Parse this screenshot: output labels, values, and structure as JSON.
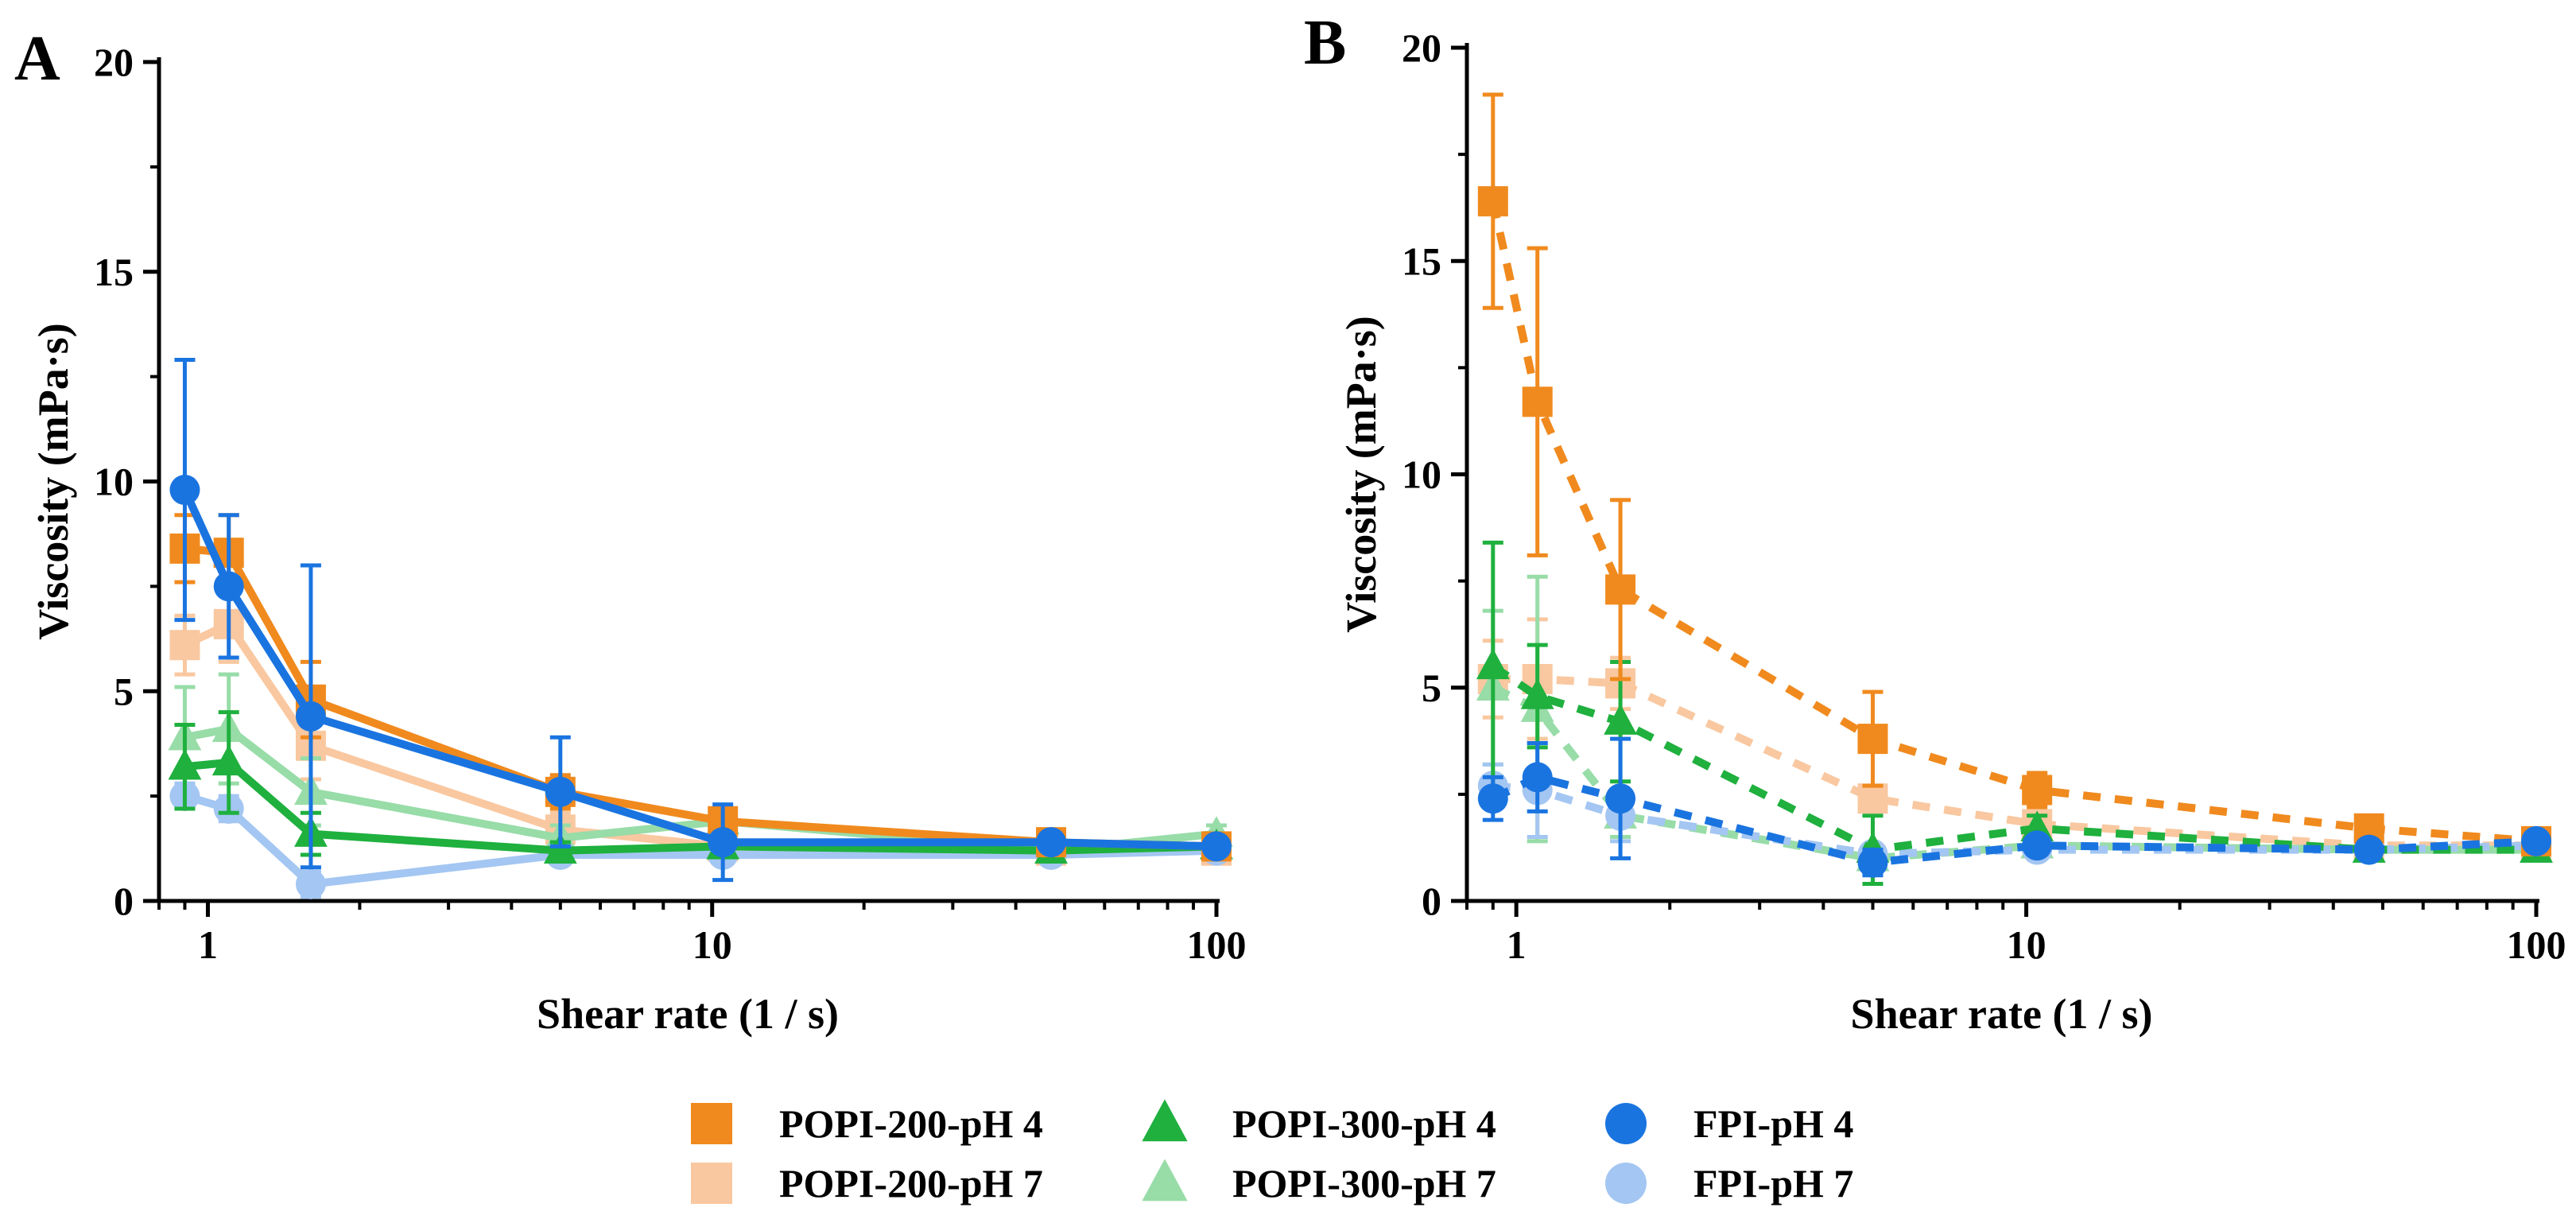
{
  "legend": {
    "items": [
      {
        "label": "POPI-200-pH 4",
        "color": "#F08A1E",
        "marker": "square"
      },
      {
        "label": "POPI-200-pH 7",
        "color": "#F9C8A0",
        "marker": "square"
      },
      {
        "label": "POPI-300-pH 4",
        "color": "#1FB03E",
        "marker": "triangle"
      },
      {
        "label": "POPI-300-pH 7",
        "color": "#98DCA8",
        "marker": "triangle"
      },
      {
        "label": "FPI-pH 4",
        "color": "#1A74E0",
        "marker": "circle"
      },
      {
        "label": "FPI-pH 7",
        "color": "#A4C6F2",
        "marker": "circle"
      }
    ]
  },
  "chart_data": [
    {
      "panel": "A",
      "type": "line",
      "line_style": "solid",
      "xlabel": "Shear rate (1 / s)",
      "ylabel": "Viscosity (mPa·s)",
      "xscale": "log",
      "xlim": [
        0.8,
        100
      ],
      "ylim": [
        0,
        20
      ],
      "xticks": [
        1,
        10,
        100
      ],
      "xtick_labels": [
        "1",
        "10",
        "100"
      ],
      "yticks": [
        0,
        5,
        10,
        15,
        20
      ],
      "ytick_labels": [
        "0",
        "5",
        "10",
        "15",
        "20"
      ],
      "x": [
        0.9,
        1.1,
        1.6,
        5,
        10.5,
        47,
        100
      ],
      "series": [
        {
          "name": "POPI-200-pH 7",
          "values": [
            6.1,
            6.6,
            3.7,
            1.7,
            1.3,
            1.2,
            1.2
          ],
          "errors": [
            0.7,
            0.9,
            0.8,
            0.4,
            0.3,
            0.15,
            0.12
          ]
        },
        {
          "name": "POPI-300-pH 7",
          "values": [
            3.9,
            4.1,
            2.6,
            1.5,
            1.9,
            1.2,
            1.6
          ],
          "errors": [
            1.2,
            1.3,
            0.8,
            0.3,
            0.3,
            0.2,
            0.2
          ]
        },
        {
          "name": "FPI-pH 7",
          "values": [
            2.5,
            2.2,
            0.4,
            1.1,
            1.1,
            1.1,
            1.2
          ],
          "errors": [
            0.3,
            0.3,
            0.3,
            0.2,
            0.1,
            0.1,
            0.1
          ]
        },
        {
          "name": "POPI-300-pH 4",
          "values": [
            3.2,
            3.3,
            1.6,
            1.2,
            1.3,
            1.2,
            1.3
          ],
          "errors": [
            1.0,
            1.2,
            0.5,
            0.2,
            0.2,
            0.2,
            0.2
          ]
        },
        {
          "name": "POPI-200-pH 4",
          "values": [
            8.4,
            8.3,
            4.8,
            2.6,
            1.9,
            1.4,
            1.3
          ],
          "errors": [
            0.8,
            0.9,
            0.9,
            0.4,
            0.3,
            0.15,
            0.1
          ]
        },
        {
          "name": "FPI-pH 4",
          "values": [
            9.8,
            7.5,
            4.4,
            2.6,
            1.4,
            1.4,
            1.3
          ],
          "errors": [
            3.1,
            1.7,
            3.6,
            1.3,
            0.9,
            0.2,
            0.15
          ]
        }
      ]
    },
    {
      "panel": "B",
      "type": "line",
      "line_style": "dashed",
      "xlabel": "Shear rate (1 / s)",
      "ylabel": "Viscosity (mPa·s)",
      "xscale": "log",
      "xlim": [
        0.8,
        100
      ],
      "ylim": [
        0,
        20
      ],
      "xticks": [
        1,
        10,
        100
      ],
      "xtick_labels": [
        "1",
        "10",
        "100"
      ],
      "yticks": [
        0,
        5,
        10,
        15,
        20
      ],
      "ytick_labels": [
        "0",
        "5",
        "10",
        "15",
        "20"
      ],
      "x": [
        0.9,
        1.1,
        1.6,
        5,
        10.5,
        47,
        100
      ],
      "series": [
        {
          "name": "POPI-200-pH 7",
          "values": [
            5.2,
            5.2,
            5.1,
            2.4,
            1.8,
            1.3,
            1.3
          ],
          "errors": [
            0.9,
            1.4,
            0.6,
            0.3,
            0.2,
            0.15,
            0.1
          ]
        },
        {
          "name": "POPI-300-pH 7",
          "values": [
            5.0,
            4.5,
            2.0,
            1.0,
            1.3,
            1.2,
            1.2
          ],
          "errors": [
            1.8,
            3.1,
            0.5,
            0.3,
            0.2,
            0.15,
            0.1
          ]
        },
        {
          "name": "FPI-pH 7",
          "values": [
            2.7,
            2.6,
            2.0,
            1.1,
            1.2,
            1.2,
            1.3
          ],
          "errors": [
            0.5,
            1.1,
            0.6,
            0.2,
            0.1,
            0.1,
            0.1
          ]
        },
        {
          "name": "POPI-300-pH 4",
          "values": [
            5.5,
            4.8,
            4.2,
            1.2,
            1.7,
            1.2,
            1.2
          ],
          "errors": [
            2.9,
            1.2,
            1.4,
            0.8,
            0.3,
            0.15,
            0.1
          ]
        },
        {
          "name": "POPI-200-pH 4",
          "values": [
            16.4,
            11.7,
            7.3,
            3.8,
            2.6,
            1.7,
            1.4
          ],
          "errors": [
            2.5,
            3.6,
            2.1,
            1.1,
            0.4,
            0.2,
            0.15
          ]
        },
        {
          "name": "FPI-pH 4",
          "values": [
            2.4,
            2.9,
            2.4,
            0.9,
            1.3,
            1.2,
            1.4
          ],
          "errors": [
            0.5,
            0.8,
            1.4,
            0.3,
            0.2,
            0.15,
            0.15
          ]
        }
      ]
    }
  ]
}
